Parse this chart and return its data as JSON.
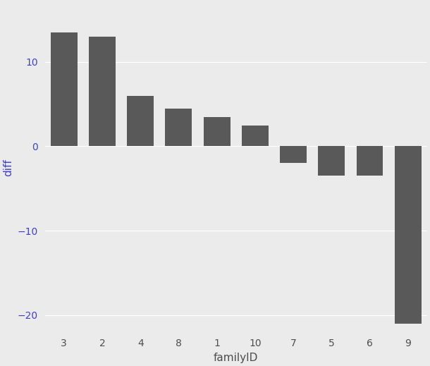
{
  "categories": [
    "3",
    "2",
    "4",
    "8",
    "1",
    "10",
    "7",
    "5",
    "6",
    "9"
  ],
  "values": [
    13.5,
    13.0,
    6.0,
    4.5,
    3.5,
    2.5,
    -2.0,
    -3.5,
    -3.5,
    -21.0
  ],
  "bar_color": "#595959",
  "background_color": "#EBEBEB",
  "panel_background": "#EBEBEB",
  "grid_color": "#FFFFFF",
  "xlabel": "familyID",
  "ylabel": "diff",
  "xlabel_color": "#4d4d4d",
  "ylabel_color": "#4040cc",
  "tick_color": "#4040cc",
  "xtick_color": "#4d4d4d",
  "ylim": [
    -22,
    17
  ],
  "yticks": [
    -20,
    -10,
    0,
    10
  ],
  "axis_fontsize": 11,
  "tick_fontsize": 10
}
